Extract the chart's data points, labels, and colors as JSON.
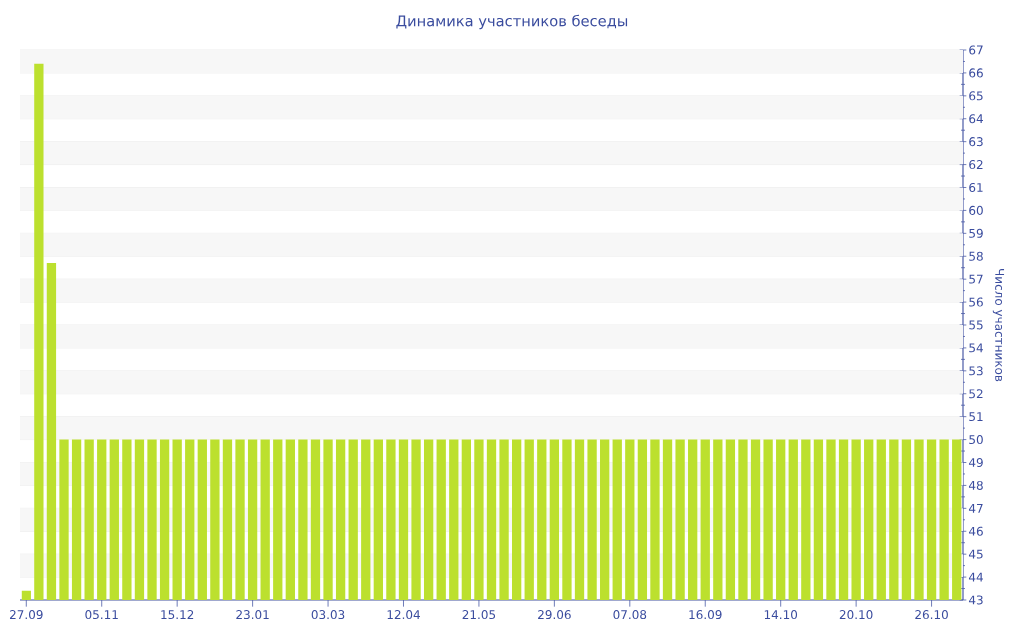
{
  "chart_data": {
    "type": "bar",
    "title": "Динамика участников беседы",
    "ylabel": "Число участников",
    "categories": [
      "27.09",
      null,
      null,
      null,
      null,
      null,
      "05.11",
      null,
      null,
      null,
      null,
      null,
      "15.12",
      null,
      null,
      null,
      null,
      null,
      "23.01",
      null,
      null,
      null,
      null,
      null,
      "03.03",
      null,
      null,
      null,
      null,
      null,
      "12.04",
      null,
      null,
      null,
      null,
      null,
      "21.05",
      null,
      null,
      null,
      null,
      null,
      "29.06",
      null,
      null,
      null,
      null,
      null,
      "07.08",
      null,
      null,
      null,
      null,
      null,
      "16.09",
      null,
      null,
      null,
      null,
      null,
      "14.10",
      null,
      null,
      null,
      null,
      null,
      "20.10",
      null,
      null,
      null,
      null,
      null,
      "26.10",
      null,
      null
    ],
    "values": [
      43.4,
      66.4,
      57.7,
      50,
      50,
      50,
      50,
      50,
      50,
      50,
      50,
      50,
      50,
      50,
      50,
      50,
      50,
      50,
      50,
      50,
      50,
      50,
      50,
      50,
      50,
      50,
      50,
      50,
      50,
      50,
      50,
      50,
      50,
      50,
      50,
      50,
      50,
      50,
      50,
      50,
      50,
      50,
      50,
      50,
      50,
      50,
      50,
      50,
      50,
      50,
      50,
      50,
      50,
      50,
      50,
      50,
      50,
      50,
      50,
      50,
      50,
      50,
      50,
      50,
      50,
      50,
      50,
      50,
      50,
      50,
      50,
      50,
      50,
      50,
      50
    ],
    "color": "#bce02e",
    "ylim": [
      43,
      67
    ],
    "yticks": [
      43,
      44,
      45,
      46,
      47,
      48,
      49,
      50,
      51,
      52,
      53,
      54,
      55,
      56,
      57,
      58,
      59,
      60,
      61,
      62,
      63,
      64,
      65,
      66,
      67
    ],
    "grid": "y"
  }
}
